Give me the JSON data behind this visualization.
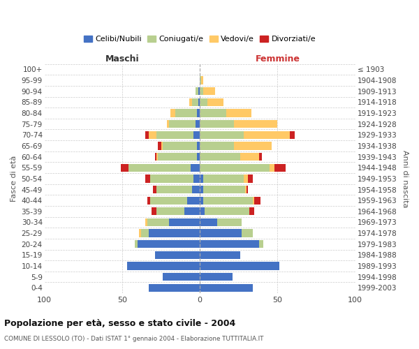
{
  "age_groups_display": [
    "0-4",
    "5-9",
    "10-14",
    "15-19",
    "20-24",
    "25-29",
    "30-34",
    "35-39",
    "40-44",
    "45-49",
    "50-54",
    "55-59",
    "60-64",
    "65-69",
    "70-74",
    "75-79",
    "80-84",
    "85-89",
    "90-94",
    "95-99",
    "100+"
  ],
  "birth_years_display": [
    "1999-2003",
    "1994-1998",
    "1989-1993",
    "1984-1988",
    "1979-1983",
    "1974-1978",
    "1969-1973",
    "1964-1968",
    "1959-1963",
    "1954-1958",
    "1949-1953",
    "1944-1948",
    "1939-1943",
    "1934-1938",
    "1929-1933",
    "1924-1928",
    "1919-1923",
    "1914-1918",
    "1909-1913",
    "1904-1908",
    "≤ 1903"
  ],
  "maschi": {
    "celibi": [
      33,
      24,
      47,
      29,
      40,
      33,
      20,
      10,
      8,
      5,
      4,
      6,
      2,
      2,
      4,
      3,
      2,
      1,
      1,
      0,
      0
    ],
    "coniugati": [
      0,
      0,
      0,
      0,
      2,
      5,
      14,
      18,
      24,
      23,
      28,
      40,
      25,
      22,
      24,
      17,
      14,
      4,
      2,
      0,
      0
    ],
    "vedovi": [
      0,
      0,
      0,
      0,
      0,
      1,
      1,
      0,
      0,
      0,
      0,
      0,
      1,
      1,
      5,
      1,
      3,
      2,
      0,
      0,
      0
    ],
    "divorziati": [
      0,
      0,
      0,
      0,
      0,
      0,
      0,
      3,
      2,
      2,
      3,
      5,
      1,
      2,
      2,
      0,
      0,
      0,
      0,
      0,
      0
    ]
  },
  "femmine": {
    "nubili": [
      34,
      21,
      51,
      26,
      38,
      27,
      11,
      3,
      2,
      2,
      2,
      0,
      0,
      0,
      0,
      0,
      0,
      0,
      0,
      0,
      0
    ],
    "coniugate": [
      0,
      0,
      0,
      0,
      3,
      7,
      16,
      29,
      32,
      27,
      26,
      45,
      26,
      22,
      28,
      22,
      17,
      5,
      2,
      1,
      0
    ],
    "vedove": [
      0,
      0,
      0,
      0,
      0,
      0,
      0,
      0,
      1,
      1,
      3,
      3,
      12,
      24,
      30,
      28,
      16,
      10,
      8,
      1,
      0
    ],
    "divorziate": [
      0,
      0,
      0,
      0,
      0,
      0,
      0,
      3,
      4,
      1,
      3,
      7,
      2,
      0,
      3,
      0,
      0,
      0,
      0,
      0,
      0
    ]
  },
  "colors": {
    "celibi": "#4472c4",
    "coniugati": "#b8cf8f",
    "vedovi": "#ffc966",
    "divorziati": "#cc2222"
  },
  "xlim": 100,
  "title": "Popolazione per età, sesso e stato civile - 2004",
  "subtitle": "COMUNE DI LESSOLO (TO) - Dati ISTAT 1° gennaio 2004 - Elaborazione TUTTITALIA.IT",
  "ylabel_left": "Fasce di età",
  "ylabel_right": "Anni di nascita",
  "legend_labels": [
    "Celibi/Nubili",
    "Coniugati/e",
    "Vedovi/e",
    "Divorziati/e"
  ],
  "maschi_label": "Maschi",
  "femmine_label": "Femmine",
  "background_color": "#ffffff",
  "grid_color": "#cccccc"
}
